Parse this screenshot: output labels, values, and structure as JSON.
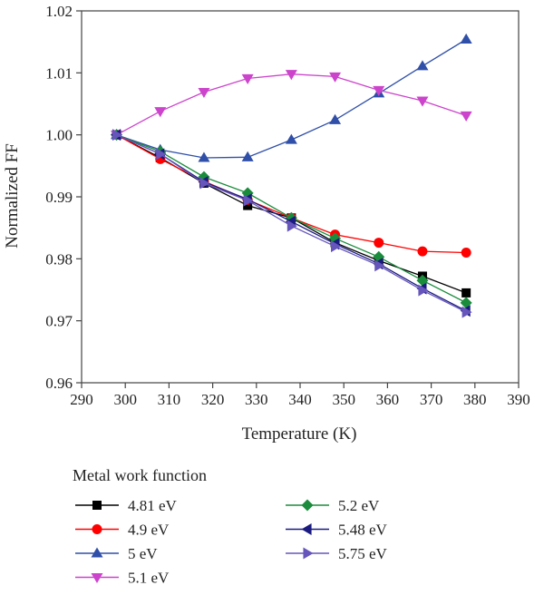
{
  "chart_data": {
    "type": "line",
    "title": "",
    "xlabel": "Temperature (K)",
    "ylabel": "Normalized FF",
    "xlim": [
      290,
      390
    ],
    "ylim": [
      0.96,
      1.02
    ],
    "x_ticks": [
      "290",
      "300",
      "310",
      "320",
      "330",
      "340",
      "350",
      "360",
      "370",
      "380",
      "390"
    ],
    "y_ticks": [
      "0.96",
      "0.97",
      "0.98",
      "0.99",
      "1.00",
      "1.01",
      "1.02"
    ],
    "grid": false,
    "legend_title": "Metal work function",
    "legend_position": "bottom",
    "x": [
      298,
      308,
      318,
      328,
      338,
      348,
      358,
      368,
      378
    ],
    "series": [
      {
        "name": "4.81 eV",
        "color": "#000000",
        "marker": "square",
        "values": [
          1.0,
          0.9963,
          0.9922,
          0.9886,
          0.9866,
          0.9826,
          0.9797,
          0.9772,
          0.9745
        ]
      },
      {
        "name": "4.9 eV",
        "color": "#ff0000",
        "marker": "circle",
        "values": [
          1.0,
          0.9961,
          0.9925,
          0.9895,
          0.9866,
          0.9839,
          0.9826,
          0.9812,
          0.981
        ]
      },
      {
        "name": "5 eV",
        "color": "#2f4fa8",
        "marker": "triangle-up",
        "values": [
          1.0,
          0.9976,
          0.9963,
          0.9964,
          0.9992,
          1.0024,
          1.0067,
          1.0111,
          1.0154
        ]
      },
      {
        "name": "5.1 eV",
        "color": "#cc44cc",
        "marker": "triangle-down",
        "values": [
          1.0,
          1.0038,
          1.0069,
          1.0091,
          1.0098,
          1.0094,
          1.0072,
          1.0055,
          1.0031
        ]
      },
      {
        "name": "5.2 eV",
        "color": "#1a8c3c",
        "marker": "diamond",
        "values": [
          1.0,
          0.9973,
          0.9932,
          0.9906,
          0.9866,
          0.9833,
          0.9803,
          0.9765,
          0.9729
        ]
      },
      {
        "name": "5.48 eV",
        "color": "#1a1a80",
        "marker": "triangle-left",
        "values": [
          1.0,
          0.9969,
          0.9924,
          0.9896,
          0.986,
          0.9824,
          0.9792,
          0.9752,
          0.9716
        ]
      },
      {
        "name": "5.75 eV",
        "color": "#6655bb",
        "marker": "triangle-right",
        "values": [
          1.0,
          0.9969,
          0.9922,
          0.9894,
          0.9853,
          0.982,
          0.9789,
          0.9749,
          0.9714
        ]
      }
    ]
  }
}
